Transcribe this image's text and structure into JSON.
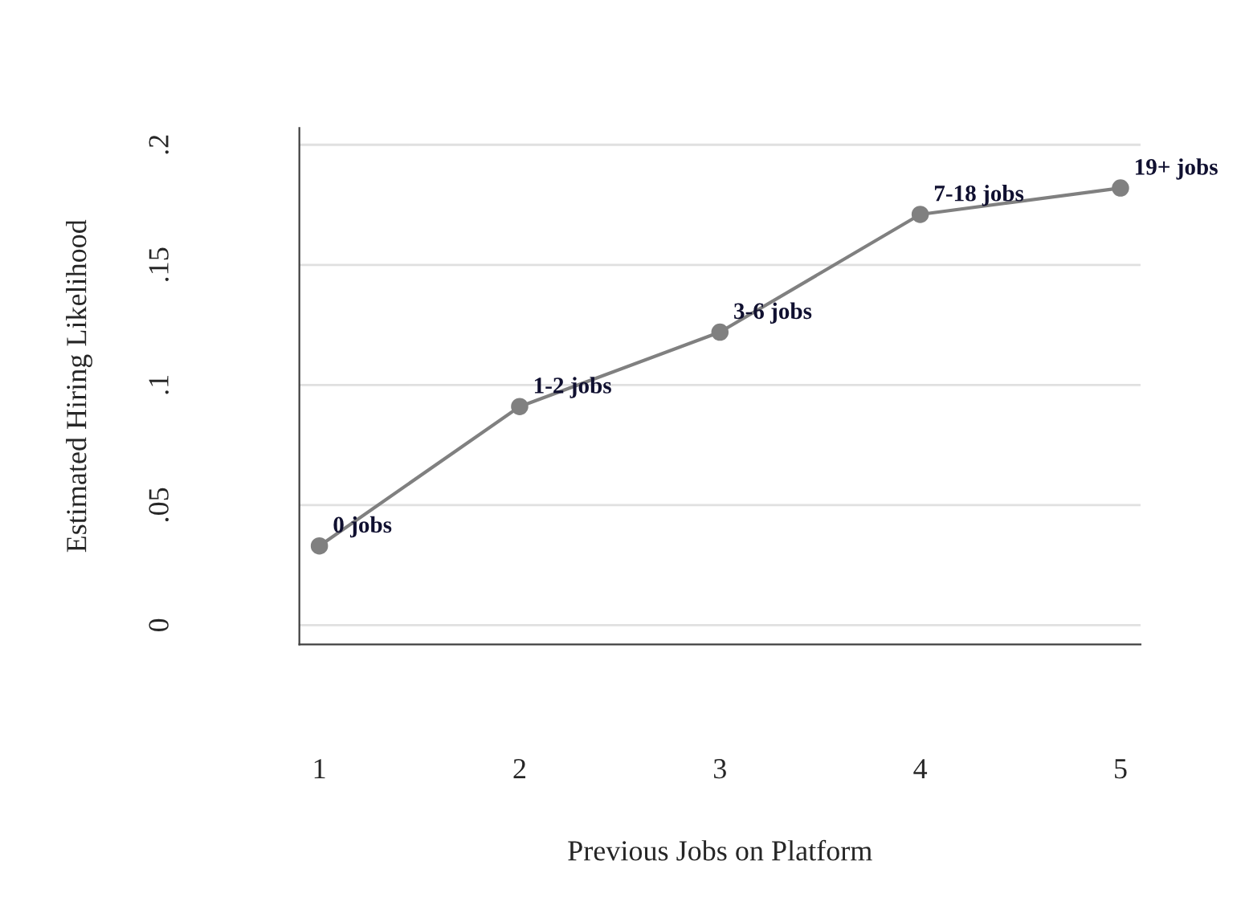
{
  "chart_data": {
    "type": "line",
    "xlabel": "Previous Jobs on Platform",
    "ylabel": "Estimated Hiring Likelihood",
    "x": [
      1,
      2,
      3,
      4,
      5
    ],
    "series": [
      {
        "color": "#808080",
        "values": [
          0.033,
          0.091,
          0.122,
          0.171,
          0.182
        ]
      }
    ],
    "xlim": [
      0.9,
      5.1
    ],
    "xticks": [
      1,
      2,
      3,
      4,
      5
    ],
    "ylim": [
      -0.008,
      0.207
    ],
    "yticks": [
      0,
      {
        "value": 0.05,
        "label": ".05"
      },
      {
        "value": 0.1,
        "label": ".1"
      },
      {
        "value": 0.15,
        "label": ".15"
      },
      {
        "value": 0.2,
        "label": ".2"
      }
    ],
    "grid": "y",
    "marker": "circle",
    "line_style": "solid",
    "annotations": [
      {
        "text": "0 jobs",
        "x": 1,
        "y": 0.033
      },
      {
        "text": "1-2 jobs",
        "x": 2,
        "y": 0.091
      },
      {
        "text": "3-6 jobs",
        "x": 3,
        "y": 0.122
      },
      {
        "text": "7-18 jobs",
        "x": 4,
        "y": 0.171
      },
      {
        "text": "19+ jobs",
        "x": 5,
        "y": 0.182
      }
    ]
  }
}
